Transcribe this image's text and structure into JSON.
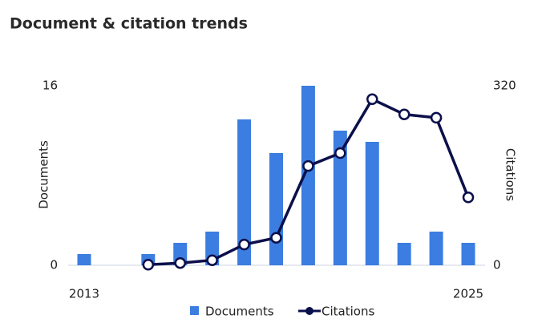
{
  "chart_data": {
    "type": "bar",
    "title": "Document & citation trends",
    "categories": [
      "2013",
      null,
      null,
      null,
      null,
      null,
      null,
      null,
      null,
      null,
      null,
      null,
      "2025"
    ],
    "ylabel": "Documents",
    "y2label": "Citations",
    "ylim": [
      0,
      16
    ],
    "yticks": [
      0,
      16
    ],
    "y2lim": [
      0,
      320
    ],
    "y2ticks": [
      0,
      320
    ],
    "series": [
      {
        "name": "Documents",
        "type": "bar",
        "color": "#3b7de0",
        "values": [
          1,
          0,
          1,
          2,
          3,
          13,
          10,
          16,
          12,
          11,
          2,
          3,
          2
        ]
      },
      {
        "name": "Citations",
        "type": "line",
        "axis": "y2",
        "color": "#0b0f4a",
        "values": [
          null,
          null,
          1,
          4,
          9,
          37,
          49,
          177,
          200,
          296,
          269,
          263,
          121
        ]
      }
    ]
  }
}
